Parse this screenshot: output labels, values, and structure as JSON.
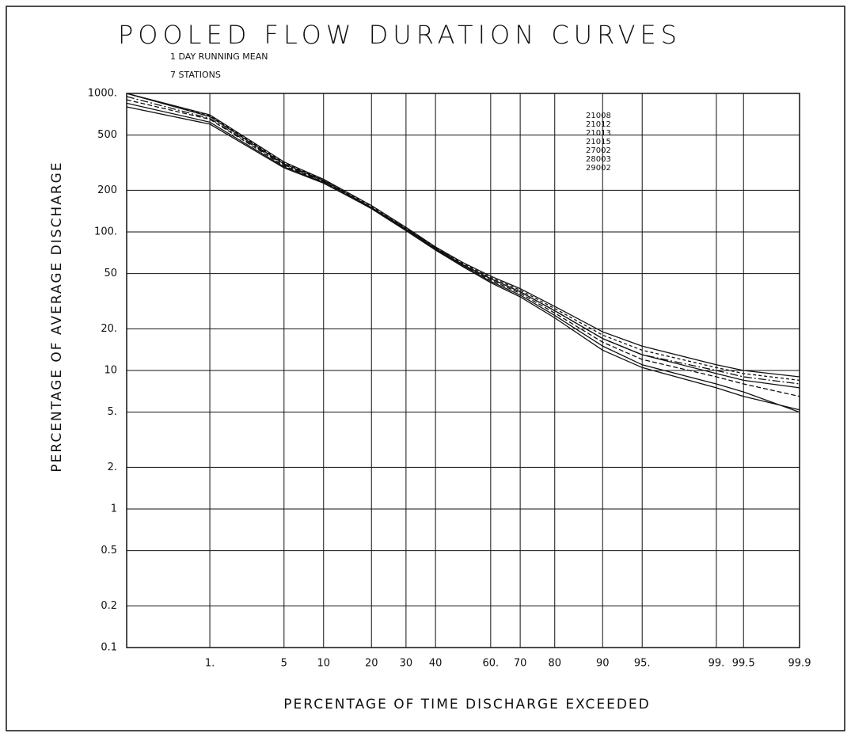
{
  "chart_data": {
    "type": "line",
    "title": "POOLED FLOW DURATION CURVES",
    "subtitle": [
      "1 DAY RUNNING MEAN",
      "7 STATIONS"
    ],
    "ylabel": "PERCENTAGE OF AVERAGE DISCHARGE",
    "xlabel": "PERCENTAGE OF TIME DISCHARGE EXCEEDED",
    "x_scale": "probability",
    "y_scale": "log",
    "grid": true,
    "xlim": [
      0.1,
      99.9
    ],
    "xticks": [
      {
        "value": 1,
        "label": "1."
      },
      5,
      10,
      20,
      30,
      40,
      {
        "value": 60,
        "label": "60."
      },
      70,
      80,
      90,
      {
        "value": 95,
        "label": "95."
      },
      {
        "value": 99,
        "label": "99."
      },
      99.5,
      99.9
    ],
    "ylim": [
      0.1,
      1000
    ],
    "yticks": [
      0.1,
      0.2,
      0.5,
      1,
      {
        "value": 2,
        "label": "2."
      },
      {
        "value": 5,
        "label": "5."
      },
      10,
      {
        "value": 20,
        "label": "20."
      },
      50,
      {
        "value": 100,
        "label": "100."
      },
      200,
      500,
      {
        "value": 1000,
        "label": "1000."
      }
    ],
    "x": [
      0.1,
      1,
      5,
      10,
      20,
      30,
      40,
      50,
      60,
      70,
      80,
      90,
      95,
      99,
      99.5,
      99.9
    ],
    "series": [
      {
        "name": "21008",
        "color": "#111111",
        "dash": "",
        "values": [
          1000,
          680,
          310,
          235,
          150,
          105,
          76,
          58,
          46,
          37,
          27,
          17,
          13,
          9.5,
          8.5,
          7.5
        ]
      },
      {
        "name": "21012",
        "color": "#111111",
        "dash": "6 3",
        "values": [
          900,
          650,
          300,
          230,
          148,
          104,
          75,
          57,
          45,
          36,
          26,
          16,
          12,
          9,
          8,
          6.5
        ]
      },
      {
        "name": "21013",
        "color": "#111111",
        "dash": "",
        "values": [
          1000,
          700,
          320,
          240,
          155,
          108,
          78,
          60,
          48,
          39,
          29,
          19,
          15,
          11,
          10,
          9
        ]
      },
      {
        "name": "21015",
        "color": "#111111",
        "dash": "",
        "values": [
          800,
          600,
          290,
          225,
          148,
          103,
          75,
          57,
          44,
          35,
          25,
          15,
          11,
          8,
          7,
          5
        ]
      },
      {
        "name": "27002",
        "color": "#111111",
        "dash": "10 3 2 3",
        "values": [
          950,
          660,
          305,
          232,
          150,
          106,
          77,
          58,
          46,
          37,
          27,
          17,
          13,
          10,
          9,
          8
        ]
      },
      {
        "name": "28003",
        "color": "#111111",
        "dash": "",
        "values": [
          850,
          620,
          295,
          228,
          147,
          102,
          74,
          56,
          43,
          34,
          24,
          14,
          10.5,
          7.5,
          6.5,
          5.2
        ]
      },
      {
        "name": "29002",
        "color": "#111111",
        "dash": "4 3",
        "values": [
          1000,
          690,
          315,
          238,
          153,
          107,
          77,
          59,
          47,
          38,
          28,
          18,
          14,
          10.5,
          9.5,
          8.5
        ]
      }
    ]
  }
}
